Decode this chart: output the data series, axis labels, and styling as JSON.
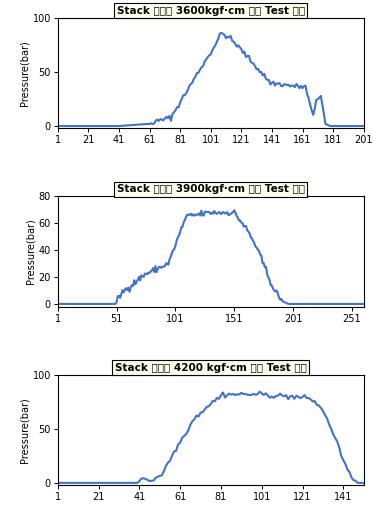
{
  "charts": [
    {
      "title": "Stack 체결력 3600kgf·cm 가압 Test 결과",
      "ylabel": "Pressure(bar)",
      "ylim": [
        -2,
        100
      ],
      "yticks": [
        0,
        50,
        100
      ],
      "xlim": [
        1,
        201
      ],
      "xticks": [
        1,
        21,
        41,
        61,
        81,
        101,
        121,
        141,
        161,
        181,
        201
      ],
      "line_color": "#4472C4",
      "points_x": [
        1,
        40,
        41,
        60,
        75,
        95,
        101,
        108,
        113,
        120,
        140,
        155,
        163,
        168,
        170,
        173,
        176,
        179,
        201
      ],
      "points_y": [
        0,
        0,
        0,
        2,
        8,
        55,
        68,
        86,
        82,
        72,
        40,
        37,
        36,
        8,
        25,
        28,
        2,
        0,
        0
      ]
    },
    {
      "title": "Stack 체결력 3900kgf·cm 가압 Test 결과",
      "ylabel": "Pressure(bar)",
      "ylim": [
        -2,
        80
      ],
      "yticks": [
        0,
        20,
        40,
        60,
        80
      ],
      "xlim": [
        1,
        261
      ],
      "xticks": [
        1,
        51,
        101,
        151,
        201,
        251
      ],
      "line_color": "#4472C4",
      "points_x": [
        1,
        50,
        55,
        75,
        95,
        110,
        130,
        151,
        162,
        170,
        178,
        185,
        192,
        197,
        261
      ],
      "points_y": [
        0,
        0,
        8,
        22,
        30,
        65,
        68,
        68,
        55,
        42,
        25,
        10,
        2,
        0,
        0
      ]
    },
    {
      "title": "Stack 체결력 4200 kgf·cm 가압 Test 결과",
      "ylabel": "Pressure(bar)",
      "ylim": [
        -2,
        100
      ],
      "yticks": [
        0,
        50,
        100
      ],
      "xlim": [
        1,
        151
      ],
      "xticks": [
        1,
        21,
        41,
        61,
        81,
        101,
        121,
        141
      ],
      "line_color": "#4472C4",
      "points_x": [
        1,
        40,
        43,
        47,
        52,
        60,
        68,
        75,
        82,
        100,
        115,
        125,
        130,
        134,
        138,
        141,
        144,
        148,
        151
      ],
      "points_y": [
        0,
        0,
        5,
        2,
        8,
        35,
        60,
        72,
        82,
        82,
        80,
        78,
        70,
        55,
        38,
        20,
        8,
        0,
        0
      ]
    }
  ],
  "figure_bg": "#ffffff",
  "axes_bg": "#ffffff",
  "title_fontsize": 7.5,
  "label_fontsize": 7,
  "tick_fontsize": 7,
  "linewidth": 1.5,
  "title_box_color": "#ffffee"
}
